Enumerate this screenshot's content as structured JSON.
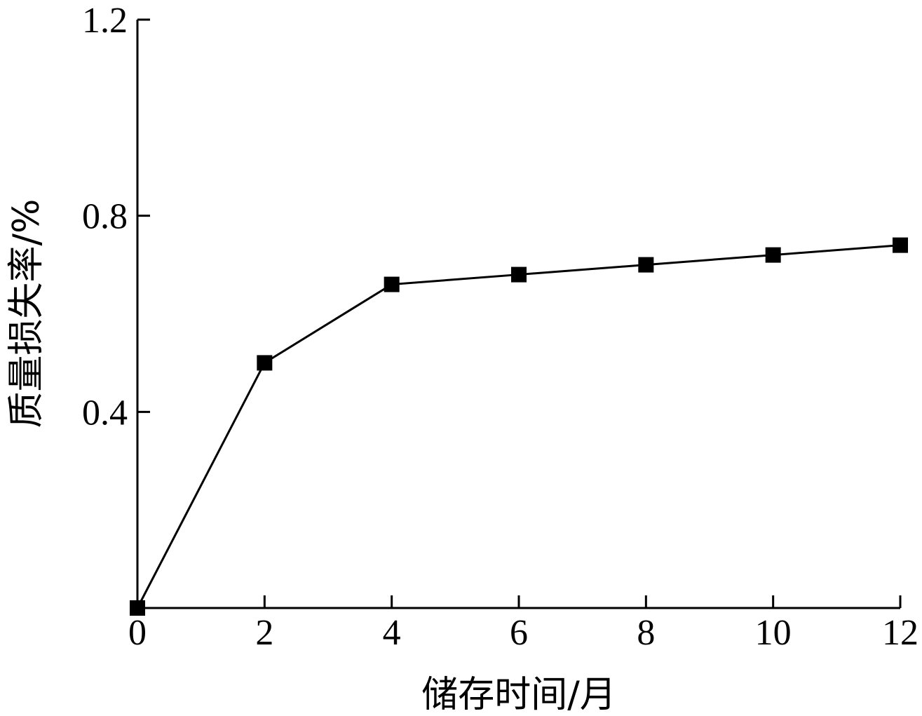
{
  "chart_data": {
    "type": "line",
    "title": "",
    "xlabel": "储存时间/月",
    "ylabel": "质量损失率/%",
    "x": [
      0,
      2,
      4,
      6,
      8,
      10,
      12
    ],
    "series": [
      {
        "values": [
          0.0,
          0.5,
          0.66,
          0.68,
          0.7,
          0.72,
          0.74
        ]
      }
    ],
    "xlim": [
      0,
      12
    ],
    "ylim": [
      0,
      1.2
    ],
    "x_ticks": [
      "0",
      "2",
      "4",
      "6",
      "8",
      "10",
      "12"
    ],
    "y_ticks": [
      "0.4",
      "0.8",
      "1.2"
    ],
    "grid": false,
    "marker": "square",
    "line_color": "#000000"
  }
}
